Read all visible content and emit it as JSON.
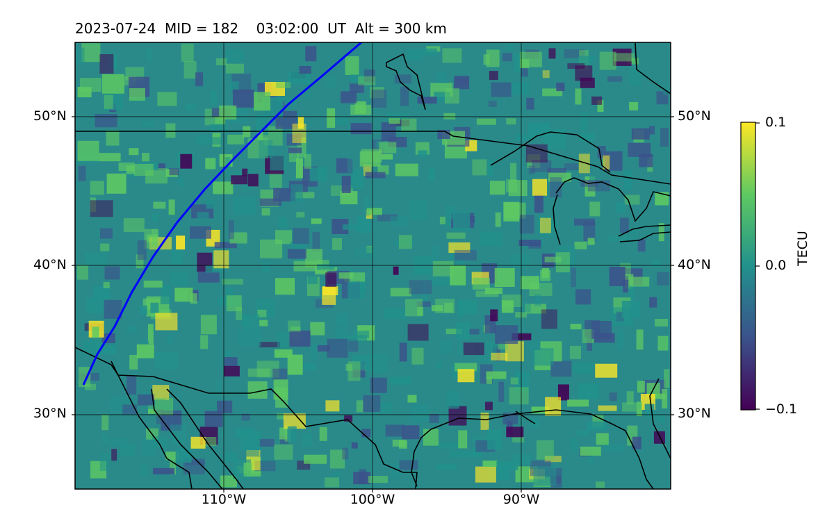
{
  "title": "2023-07-24  MID = 182    03:02:00  UT  Alt = 300 km",
  "map": {
    "lon_range": [
      -119,
      -79
    ],
    "lat_range": [
      25,
      55
    ],
    "lat_ticks": [
      "50°N",
      "40°N",
      "30°N"
    ],
    "lon_ticks": [
      "110°W",
      "100°W",
      "90°W"
    ],
    "track_color": "#0000ff",
    "coastline_color": "#000000",
    "grid": true
  },
  "colorbar": {
    "label": "TECU",
    "max_label": "0.1",
    "mid_label": "0.0",
    "min_label": "−0.1",
    "colormap": "viridis",
    "colors": [
      "#440154",
      "#3b528b",
      "#21918c",
      "#5ec962",
      "#fde725"
    ]
  }
}
